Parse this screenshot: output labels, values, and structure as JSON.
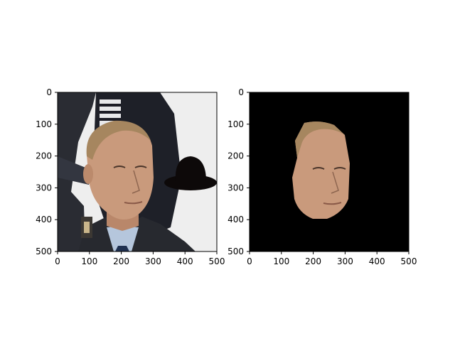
{
  "colors": {
    "background": "#ffffff",
    "axis": "#000000",
    "mask_background": "#000000",
    "hat": "#0d0909",
    "skin": "#c99a7c",
    "hair": "#a6865f",
    "suit": "#27292f",
    "shirt": "#b5c6dc",
    "tie": "#1f3050",
    "left_bg": "#eeeeee"
  },
  "chart_data": [
    {
      "type": "image",
      "panel": "left",
      "content": "photo of a man with a black hat shape overlay",
      "xlim": [
        0,
        500
      ],
      "ylim": [
        500,
        0
      ],
      "xticks": [
        0,
        100,
        200,
        300,
        400,
        500
      ],
      "yticks": [
        0,
        100,
        200,
        300,
        400,
        500
      ],
      "xtick_labels": [
        "0",
        "100",
        "200",
        "300",
        "400",
        "500"
      ],
      "ytick_labels": [
        "0",
        "100",
        "200",
        "300",
        "400",
        "500"
      ],
      "grid": false
    },
    {
      "type": "image",
      "panel": "right",
      "content": "segmented face on black background",
      "xlim": [
        0,
        500
      ],
      "ylim": [
        500,
        0
      ],
      "xticks": [
        0,
        100,
        200,
        300,
        400,
        500
      ],
      "yticks": [
        0,
        100,
        200,
        300,
        400,
        500
      ],
      "xtick_labels": [
        "0",
        "100",
        "200",
        "300",
        "400",
        "500"
      ],
      "ytick_labels": [
        "0",
        "100",
        "200",
        "300",
        "400",
        "500"
      ],
      "grid": false
    }
  ]
}
